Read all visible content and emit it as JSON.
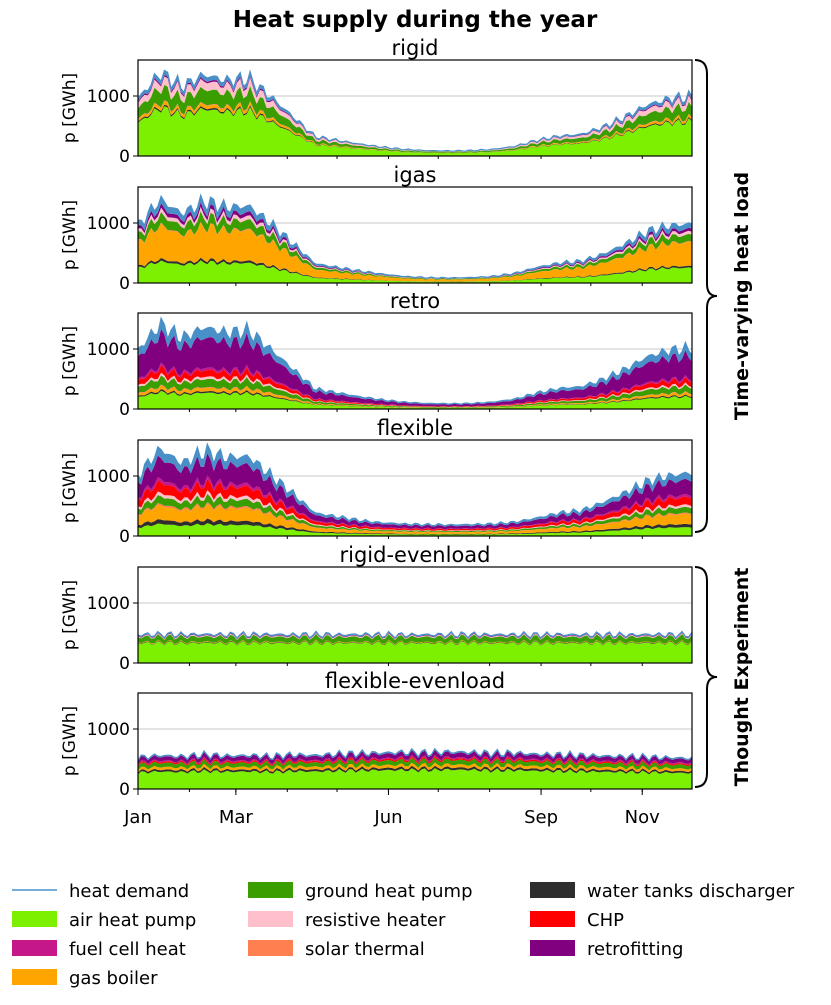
{
  "chart_data": {
    "type": "area",
    "stacked": true,
    "title": "Heat supply during the year",
    "ylabel": "p [GWh]",
    "ylim": [
      0,
      1600
    ],
    "yticks": [
      0,
      1000
    ],
    "grid": "horizontal",
    "x_ticks": [
      "Jan",
      "Mar",
      "Jun",
      "Sep",
      "Nov"
    ],
    "x_tick_days": [
      0,
      59,
      151,
      243,
      304
    ],
    "x_range_days": [
      0,
      334
    ],
    "colors": {
      "heat demand": "#4a90c8",
      "air heat pump": "#7cf000",
      "ground heat pump": "#3a9e00",
      "water tanks discharger": "#2e2e2e",
      "fuel cell heat": "#c5168a",
      "resistive heater": "#ffc0cb",
      "CHP": "#ff0000",
      "gas boiler": "#ffa500",
      "solar thermal": "#ff7f50",
      "retrofitting": "#800080"
    },
    "groups": [
      {
        "label": "Time-varying heat load",
        "panels": [
          "rigid",
          "igas",
          "retro",
          "flexible"
        ]
      },
      {
        "label": "Thought Experiment",
        "panels": [
          "rigid-evenload",
          "flexible-evenload"
        ]
      }
    ],
    "panels": [
      {
        "title": "rigid",
        "total": [
          950,
          1380,
          1150,
          1350,
          1250,
          1280,
          980,
          650,
          320,
          260,
          200,
          150,
          110,
          90,
          85,
          90,
          110,
          160,
          260,
          330,
          360,
          480,
          650,
          850,
          950,
          980
        ],
        "shares": {
          "air heat pump": 0.58,
          "water tanks discharger": 0.02,
          "gas boiler": 0.04,
          "solar thermal": 0.01,
          "ground heat pump": 0.18,
          "resistive heater": 0.1,
          "retrofitting": 0.02,
          "heat demand": 0.05
        }
      },
      {
        "title": "igas",
        "total": [
          950,
          1380,
          1150,
          1350,
          1250,
          1280,
          980,
          650,
          320,
          260,
          200,
          150,
          110,
          90,
          85,
          90,
          110,
          160,
          260,
          330,
          360,
          480,
          650,
          850,
          950,
          980
        ],
        "shares": {
          "air heat pump": 0.26,
          "water tanks discharger": 0.03,
          "gas boiler": 0.4,
          "solar thermal": 0.01,
          "ground heat pump": 0.12,
          "resistive heater": 0.05,
          "retrofitting": 0.05,
          "heat demand": 0.08
        }
      },
      {
        "title": "retro",
        "total": [
          980,
          1400,
          1170,
          1360,
          1260,
          1290,
          990,
          660,
          330,
          270,
          205,
          155,
          115,
          92,
          88,
          92,
          115,
          165,
          265,
          340,
          370,
          490,
          660,
          870,
          970,
          1000
        ],
        "shares": {
          "air heat pump": 0.2,
          "water tanks discharger": 0.02,
          "gas boiler": 0.04,
          "solar thermal": 0.01,
          "ground heat pump": 0.1,
          "resistive heater": 0.03,
          "CHP": 0.08,
          "fuel cell heat": 0.03,
          "retrofitting": 0.37,
          "heat demand": 0.12
        }
      },
      {
        "title": "flexible",
        "total": [
          1000,
          1450,
          1200,
          1400,
          1300,
          1320,
          1000,
          700,
          380,
          320,
          260,
          220,
          200,
          190,
          185,
          190,
          200,
          230,
          300,
          380,
          420,
          560,
          720,
          900,
          1000,
          1050
        ],
        "shares": {
          "air heat pump": 0.14,
          "water tanks discharger": 0.05,
          "gas boiler": 0.16,
          "solar thermal": 0.02,
          "ground heat pump": 0.09,
          "resistive heater": 0.04,
          "CHP": 0.12,
          "fuel cell heat": 0.04,
          "retrofitting": 0.24,
          "heat demand": 0.1
        }
      },
      {
        "title": "rigid-evenload",
        "total": [
          470,
          475,
          470,
          478,
          472,
          470,
          476,
          468,
          472,
          470,
          474,
          470,
          468,
          472,
          470,
          474,
          470,
          472,
          468,
          474,
          470,
          472,
          468,
          474,
          470,
          472
        ],
        "shares": {
          "air heat pump": 0.7,
          "water tanks discharger": 0.02,
          "gas boiler": 0.02,
          "ground heat pump": 0.18,
          "resistive heater": 0.03,
          "retrofitting": 0.02,
          "heat demand": 0.03
        }
      },
      {
        "title": "flexible-evenload",
        "total": [
          520,
          560,
          540,
          570,
          550,
          560,
          540,
          570,
          560,
          580,
          590,
          600,
          610,
          600,
          620,
          610,
          590,
          600,
          580,
          570,
          560,
          550,
          540,
          530,
          520,
          510
        ],
        "shares": {
          "air heat pump": 0.52,
          "water tanks discharger": 0.06,
          "gas boiler": 0.08,
          "ground heat pump": 0.12,
          "CHP": 0.04,
          "fuel cell heat": 0.03,
          "retrofitting": 0.12,
          "heat demand": 0.03
        }
      }
    ],
    "stack_order": [
      "air heat pump",
      "water tanks discharger",
      "gas boiler",
      "solar thermal",
      "ground heat pump",
      "resistive heater",
      "CHP",
      "fuel cell heat",
      "retrofitting",
      "heat demand"
    ],
    "legend": {
      "position": "bottom",
      "columns": [
        [
          "heat demand",
          "air heat pump",
          "fuel cell heat",
          "gas boiler"
        ],
        [
          "ground heat pump",
          "resistive heater",
          "solar thermal"
        ],
        [
          "water tanks discharger",
          "CHP",
          "retrofitting"
        ]
      ]
    }
  }
}
